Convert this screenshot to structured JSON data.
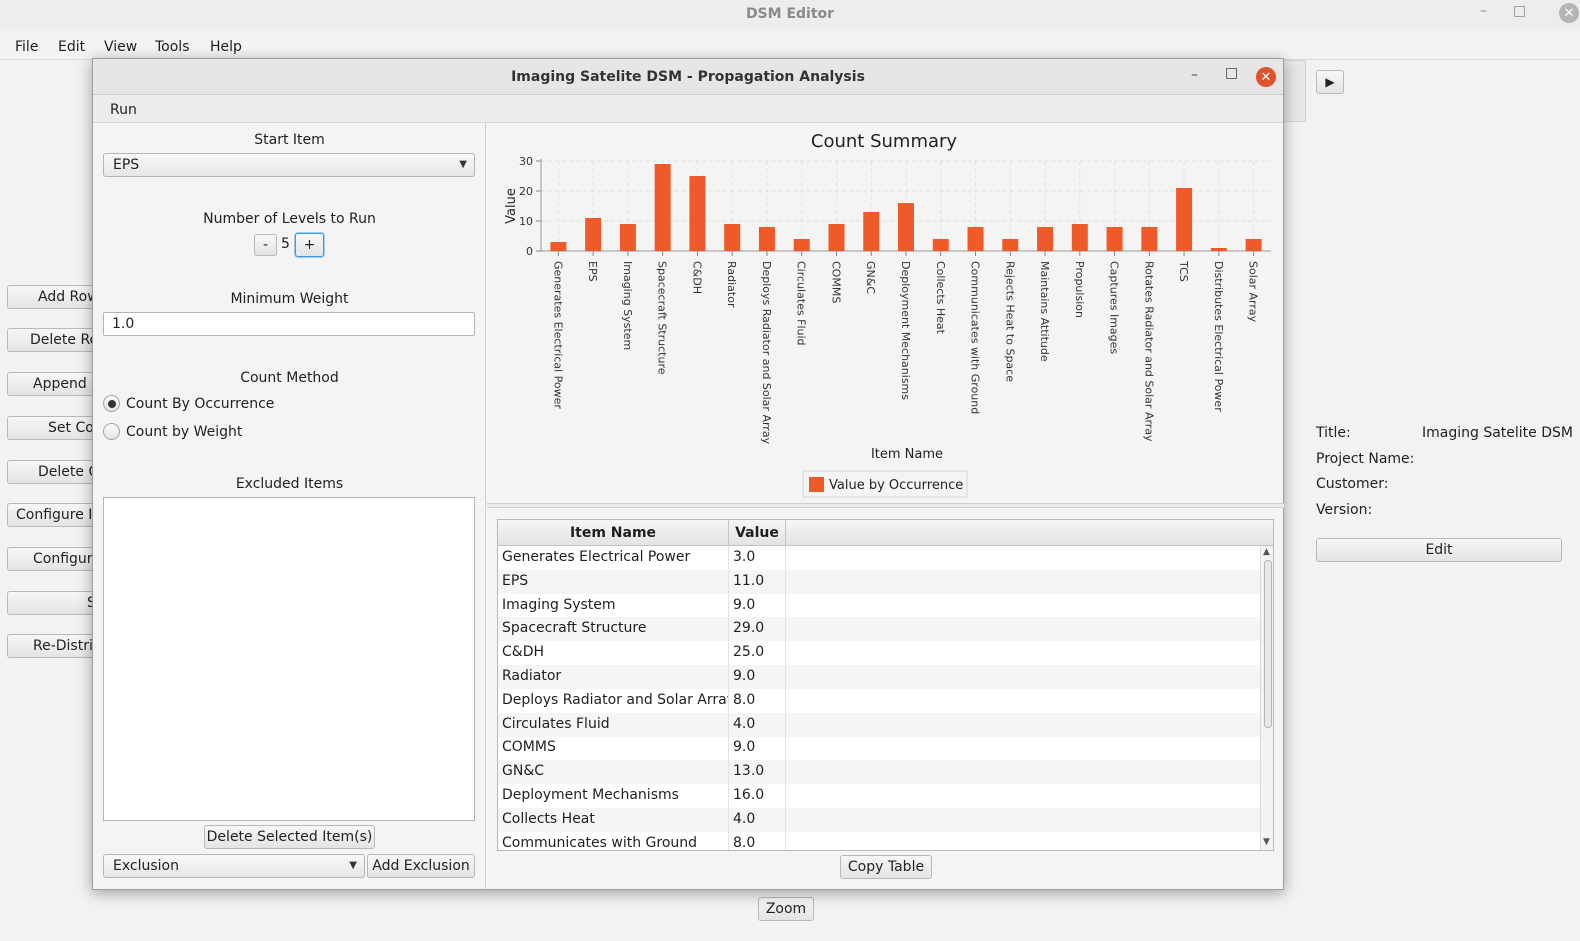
{
  "main": {
    "title": "DSM Editor",
    "controls": {
      "minimize": "–",
      "maximize": "□",
      "close": "✕"
    },
    "menu": [
      "File",
      "Edit",
      "View",
      "Tools",
      "Help"
    ],
    "side_buttons": [
      "Add Row",
      "Delete Row",
      "Append Column",
      "Set Column",
      "Delete Column",
      "Configure Interface",
      "Configure",
      "Sort",
      "Re-Distribute"
    ],
    "play_icon": "▶",
    "info": {
      "title_label": "Title:",
      "title_value": "Imaging Satelite DSM",
      "project_label": "Project Name:",
      "customer_label": "Customer:",
      "version_label": "Version:"
    },
    "edit_label": "Edit",
    "zoom_label": "Zoom"
  },
  "dialog": {
    "title": "Imaging Satelite DSM - Propagation Analysis",
    "controls": {
      "minimize": "–",
      "maximize": "□",
      "close": "✕"
    },
    "menu_run": "Run",
    "start_item_label": "Start Item",
    "start_item_value": "EPS",
    "levels_label": "Number of Levels to Run",
    "levels_minus": "-",
    "levels_value": "5",
    "levels_plus": "+",
    "min_weight_label": "Minimum Weight",
    "min_weight_value": "1.0",
    "count_method_label": "Count Method",
    "count_by_occurrence": "Count By Occurrence",
    "count_by_weight": "Count by Weight",
    "count_method_selected": "Count By Occurrence",
    "excluded_label": "Excluded Items",
    "delete_selected_label": "Delete Selected Item(s)",
    "exclusion_combo_value": "Exclusion",
    "add_exclusion_label": "Add Exclusion",
    "copy_table_label": "Copy Table",
    "table": {
      "headers": [
        "Item Name",
        "Value"
      ],
      "rows": [
        [
          "Generates Electrical Power",
          "3.0"
        ],
        [
          "EPS",
          "11.0"
        ],
        [
          "Imaging System",
          "9.0"
        ],
        [
          "Spacecraft Structure",
          "29.0"
        ],
        [
          "C&DH",
          "25.0"
        ],
        [
          "Radiator",
          "9.0"
        ],
        [
          "Deploys Radiator and Solar Array",
          "8.0"
        ],
        [
          "Circulates Fluid",
          "4.0"
        ],
        [
          "COMMS",
          "9.0"
        ],
        [
          "GN&C",
          "13.0"
        ],
        [
          "Deployment Mechanisms",
          "16.0"
        ],
        [
          "Collects Heat",
          "4.0"
        ],
        [
          "Communicates with Ground",
          "8.0"
        ]
      ]
    }
  },
  "chart_data": {
    "type": "bar",
    "title": "Count Summary",
    "xlabel": "Item Name",
    "ylabel": "Value",
    "ylim": [
      0,
      30
    ],
    "yticks": [
      0,
      10,
      20,
      30
    ],
    "grid": true,
    "legend": "bottom",
    "bar_color": "#f05a28",
    "categories": [
      "Generates Electrical Power",
      "EPS",
      "Imaging System",
      "Spacecraft Structure",
      "C&DH",
      "Radiator",
      "Deploys Radiator and Solar Array",
      "Circulates Fluid",
      "COMMS",
      "GN&C",
      "Deployment Mechanisms",
      "Collects Heat",
      "Communicates with Ground",
      "Rejects Heat to Space",
      "Maintains Attitude",
      "Propulsion",
      "Captures Images",
      "Rotates Radiator and Solar Array",
      "TCS",
      "Distributes Electrical Power",
      "Solar Array"
    ],
    "series": [
      {
        "name": "Value by Occurrence",
        "values": [
          3,
          11,
          9,
          29,
          25,
          9,
          8,
          4,
          9,
          13,
          16,
          4,
          8,
          4,
          8,
          9,
          8,
          8,
          21,
          1,
          4
        ]
      }
    ]
  }
}
